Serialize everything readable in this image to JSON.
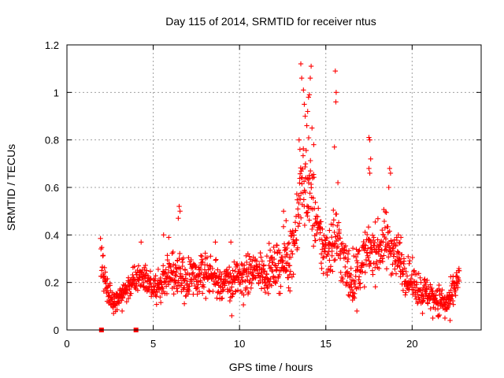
{
  "chart_data": {
    "type": "scatter",
    "title": "Day 115 of 2014, SRMTID for receiver ntus",
    "xlabel": "GPS time / hours",
    "ylabel": "SRMTID / TECUs",
    "xlim": [
      0,
      24
    ],
    "ylim": [
      0,
      1.2
    ],
    "xticks": [
      0,
      5,
      10,
      15,
      20
    ],
    "yticks": [
      0,
      0.2,
      0.4,
      0.6,
      0.8,
      1,
      1.2
    ],
    "xtick_labels": [
      "0",
      "5",
      "10",
      "15",
      "20"
    ],
    "ytick_labels": [
      "0",
      "0.2",
      "0.4",
      "0.6",
      "0.8",
      "1",
      "1.2"
    ],
    "grid": true,
    "point_color": "#ff0000",
    "marker": "plus",
    "zero_markers": [
      2.0,
      4.0
    ],
    "trend": [
      [
        1.95,
        0.28
      ],
      [
        2.1,
        0.26
      ],
      [
        2.3,
        0.18
      ],
      [
        2.6,
        0.14
      ],
      [
        3.0,
        0.13
      ],
      [
        3.4,
        0.16
      ],
      [
        3.8,
        0.2
      ],
      [
        4.2,
        0.23
      ],
      [
        4.6,
        0.2
      ],
      [
        5.0,
        0.17
      ],
      [
        5.5,
        0.2
      ],
      [
        6.0,
        0.24
      ],
      [
        6.5,
        0.24
      ],
      [
        7.0,
        0.21
      ],
      [
        7.5,
        0.22
      ],
      [
        8.0,
        0.25
      ],
      [
        8.5,
        0.22
      ],
      [
        9.0,
        0.2
      ],
      [
        9.5,
        0.2
      ],
      [
        10.0,
        0.22
      ],
      [
        10.5,
        0.23
      ],
      [
        11.0,
        0.25
      ],
      [
        11.5,
        0.24
      ],
      [
        12.0,
        0.26
      ],
      [
        12.5,
        0.28
      ],
      [
        13.0,
        0.32
      ],
      [
        13.3,
        0.45
      ],
      [
        13.6,
        0.6
      ],
      [
        13.9,
        0.62
      ],
      [
        14.2,
        0.55
      ],
      [
        14.5,
        0.42
      ],
      [
        14.8,
        0.35
      ],
      [
        15.0,
        0.33
      ],
      [
        15.3,
        0.36
      ],
      [
        15.6,
        0.4
      ],
      [
        15.9,
        0.32
      ],
      [
        16.2,
        0.25
      ],
      [
        16.5,
        0.22
      ],
      [
        16.8,
        0.24
      ],
      [
        17.2,
        0.3
      ],
      [
        17.6,
        0.34
      ],
      [
        18.0,
        0.33
      ],
      [
        18.4,
        0.38
      ],
      [
        18.8,
        0.35
      ],
      [
        19.2,
        0.3
      ],
      [
        19.6,
        0.24
      ],
      [
        20.0,
        0.2
      ],
      [
        20.5,
        0.17
      ],
      [
        21.0,
        0.15
      ],
      [
        21.5,
        0.13
      ],
      [
        22.0,
        0.11
      ],
      [
        22.3,
        0.14
      ],
      [
        22.6,
        0.2
      ],
      [
        22.75,
        0.22
      ]
    ],
    "scatter_spread": [
      [
        1.95,
        0.08
      ],
      [
        3.0,
        0.04
      ],
      [
        5.0,
        0.06
      ],
      [
        6.5,
        0.09
      ],
      [
        8.0,
        0.08
      ],
      [
        10.0,
        0.08
      ],
      [
        12.0,
        0.08
      ],
      [
        13.3,
        0.15
      ],
      [
        14.0,
        0.2
      ],
      [
        14.6,
        0.12
      ],
      [
        15.6,
        0.14
      ],
      [
        17.0,
        0.1
      ],
      [
        18.5,
        0.12
      ],
      [
        19.6,
        0.08
      ],
      [
        21.0,
        0.06
      ],
      [
        22.75,
        0.06
      ]
    ],
    "peak_points": [
      [
        13.55,
        1.12
      ],
      [
        13.6,
        1.06
      ],
      [
        13.7,
        1.01
      ],
      [
        13.75,
        0.95
      ],
      [
        13.8,
        0.9
      ],
      [
        13.9,
        0.86
      ],
      [
        13.95,
        0.92
      ],
      [
        14.0,
        0.98
      ],
      [
        14.05,
        0.99
      ],
      [
        14.1,
        1.06
      ],
      [
        14.15,
        1.11
      ],
      [
        14.2,
        0.85
      ],
      [
        14.3,
        0.78
      ],
      [
        13.5,
        0.76
      ],
      [
        13.45,
        0.8
      ],
      [
        15.55,
        1.09
      ],
      [
        15.6,
        1.0
      ],
      [
        15.58,
        0.96
      ],
      [
        15.5,
        0.77
      ],
      [
        15.7,
        0.62
      ],
      [
        17.5,
        0.81
      ],
      [
        17.55,
        0.8
      ],
      [
        17.6,
        0.72
      ],
      [
        17.5,
        0.68
      ],
      [
        17.55,
        0.66
      ],
      [
        18.7,
        0.68
      ],
      [
        18.75,
        0.66
      ],
      [
        18.65,
        0.6
      ],
      [
        12.55,
        0.5
      ],
      [
        12.7,
        0.46
      ],
      [
        6.5,
        0.52
      ],
      [
        6.55,
        0.5
      ],
      [
        6.45,
        0.47
      ],
      [
        5.6,
        0.4
      ],
      [
        5.9,
        0.39
      ],
      [
        4.3,
        0.37
      ],
      [
        9.5,
        0.37
      ],
      [
        8.6,
        0.37
      ],
      [
        19.2,
        0.4
      ],
      [
        19.35,
        0.39
      ]
    ],
    "low_points": [
      [
        9.55,
        0.06
      ],
      [
        21.9,
        0.05
      ],
      [
        22.2,
        0.04
      ],
      [
        21.5,
        0.06
      ],
      [
        21.2,
        0.05
      ],
      [
        2.7,
        0.07
      ],
      [
        3.2,
        0.08
      ],
      [
        16.8,
        0.08
      ],
      [
        20.6,
        0.07
      ]
    ]
  }
}
